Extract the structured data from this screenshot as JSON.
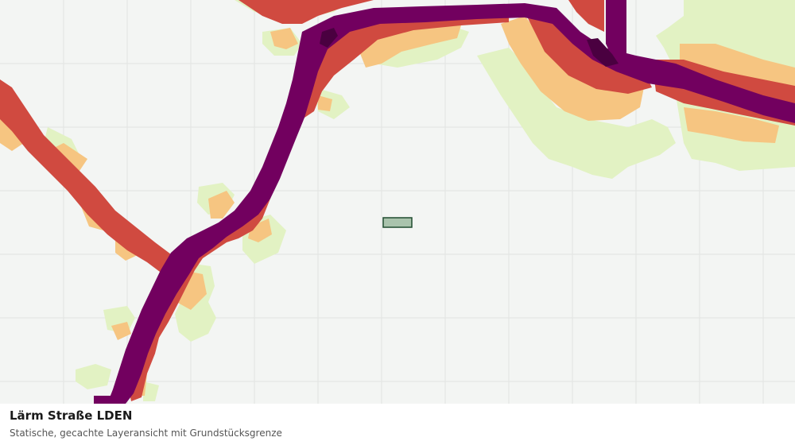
{
  "panel": {
    "title": "Lärm Straße LDEN",
    "subtitle": "Statische, gecachte Layeransicht mit Grundstücksgrenze"
  },
  "map": {
    "background_color": "#f3f5f3",
    "grid_color": "#e1e4e1",
    "noise_bands": [
      {
        "name": "band-lowest",
        "color": "#e2f2c3"
      },
      {
        "name": "band-low",
        "color": "#f6c581"
      },
      {
        "name": "band-mid",
        "color": "#d04a40"
      },
      {
        "name": "band-high",
        "color": "#72005f"
      },
      {
        "name": "band-highest",
        "color": "#4a0040"
      }
    ],
    "parcel": {
      "fill": "#a9c3ac",
      "stroke": "#1f4d2f"
    }
  }
}
